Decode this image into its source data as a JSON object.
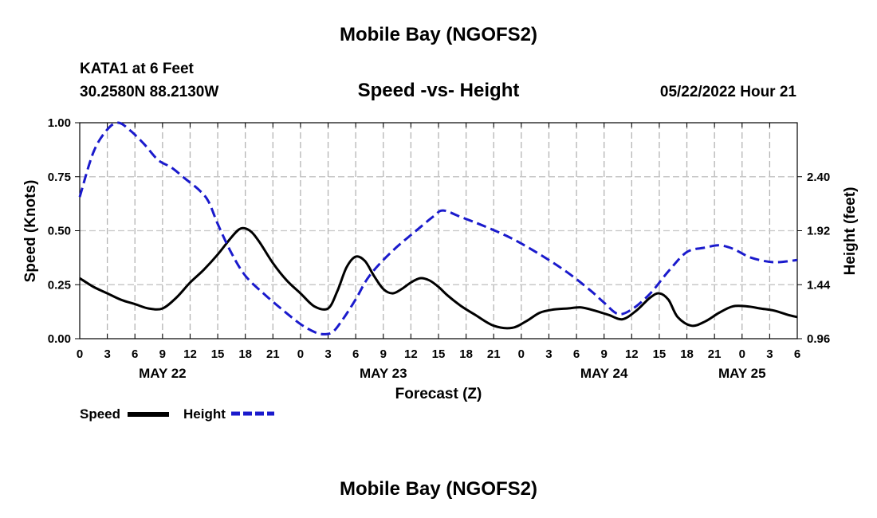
{
  "page": {
    "title_top": "Mobile Bay (NGOFS2)",
    "title_bottom": "Mobile Bay (NGOFS2)",
    "station_line1": "KATA1 at 6 Feet",
    "station_line2": "30.2580N  88.2130W",
    "subtitle": "Speed -vs- Height",
    "datetime": "05/22/2022 Hour 21"
  },
  "chart_data": {
    "type": "line",
    "title": "Speed -vs- Height",
    "xlabel": "Forecast (Z)",
    "ylabel": "Speed (Knots)",
    "y2label": "Height (feet)",
    "xlim": [
      0,
      78
    ],
    "ylim": [
      0,
      1.0
    ],
    "y2lim": [
      0.96,
      2.88
    ],
    "x_ticks": [
      0,
      3,
      6,
      9,
      12,
      15,
      18,
      21,
      24,
      27,
      30,
      33,
      36,
      39,
      42,
      45,
      48,
      51,
      54,
      57,
      60,
      63,
      66,
      69,
      72,
      75,
      78
    ],
    "x_tick_labels": [
      "0",
      "3",
      "6",
      "9",
      "12",
      "15",
      "18",
      "21",
      "0",
      "3",
      "6",
      "9",
      "12",
      "15",
      "18",
      "21",
      "0",
      "3",
      "6",
      "9",
      "12",
      "15",
      "18",
      "21",
      "0",
      "3",
      "6"
    ],
    "y_ticks": [
      0,
      0.25,
      0.5,
      0.75,
      1.0
    ],
    "y_tick_labels": [
      "0.00",
      "0.25",
      "0.50",
      "0.75",
      "1.00"
    ],
    "y2_ticks": [
      0.96,
      1.44,
      1.92,
      2.4
    ],
    "y2_tick_labels": [
      "0.96",
      "1.44",
      "1.92",
      "2.40"
    ],
    "date_labels": [
      {
        "x": 9,
        "label": "MAY 22"
      },
      {
        "x": 33,
        "label": "MAY 23"
      },
      {
        "x": 57,
        "label": "MAY 24"
      },
      {
        "x": 72,
        "label": "MAY 25"
      }
    ],
    "grid": true,
    "legend": "bottom-left",
    "series": [
      {
        "name": "Speed",
        "axis": "left",
        "color": "#000000",
        "style": "solid",
        "x": [
          0,
          1.5,
          3,
          4.5,
          6,
          7.5,
          9,
          10.5,
          12,
          13.5,
          15,
          16.5,
          17.5,
          18.5,
          19.5,
          21,
          22.5,
          24,
          25.5,
          27,
          28,
          29,
          30,
          31,
          32,
          33,
          34,
          35,
          36,
          37,
          38,
          39,
          40,
          41.5,
          43,
          45,
          47,
          48.5,
          50,
          51.5,
          53,
          54.5,
          56,
          57.5,
          59,
          60.5,
          62,
          63,
          64,
          65,
          66.5,
          68,
          69.5,
          71,
          72.5,
          74,
          75.5,
          77,
          78
        ],
        "values": [
          0.28,
          0.24,
          0.21,
          0.18,
          0.16,
          0.14,
          0.14,
          0.19,
          0.26,
          0.32,
          0.39,
          0.47,
          0.51,
          0.5,
          0.45,
          0.35,
          0.27,
          0.21,
          0.15,
          0.14,
          0.22,
          0.33,
          0.38,
          0.36,
          0.29,
          0.23,
          0.21,
          0.23,
          0.26,
          0.28,
          0.27,
          0.24,
          0.2,
          0.15,
          0.11,
          0.06,
          0.05,
          0.08,
          0.12,
          0.135,
          0.14,
          0.145,
          0.13,
          0.11,
          0.09,
          0.13,
          0.19,
          0.21,
          0.18,
          0.1,
          0.06,
          0.08,
          0.12,
          0.15,
          0.15,
          0.14,
          0.13,
          0.11,
          0.1
        ]
      },
      {
        "name": "Height",
        "axis": "right",
        "color": "#1a1acc",
        "style": "dashed",
        "x": [
          0,
          1.5,
          3,
          4.2,
          5.5,
          7,
          8.5,
          10,
          11.5,
          13,
          14,
          15,
          16.5,
          18,
          20,
          22,
          24,
          25.5,
          26.5,
          27.5,
          28.5,
          30,
          31.5,
          34,
          37,
          38.5,
          39.5,
          41.5,
          44,
          47,
          50,
          53,
          55.5,
          57,
          58.5,
          60,
          62,
          64,
          66,
          68,
          69.5,
          71,
          73,
          75.5,
          78
        ],
        "values": [
          2.22,
          2.62,
          2.82,
          2.88,
          2.81,
          2.69,
          2.55,
          2.48,
          2.38,
          2.28,
          2.18,
          1.98,
          1.72,
          1.52,
          1.36,
          1.22,
          1.09,
          1.02,
          1.0,
          1.02,
          1.12,
          1.31,
          1.52,
          1.74,
          1.95,
          2.05,
          2.1,
          2.04,
          1.96,
          1.85,
          1.71,
          1.55,
          1.39,
          1.28,
          1.18,
          1.22,
          1.36,
          1.56,
          1.73,
          1.77,
          1.79,
          1.76,
          1.68,
          1.64,
          1.66
        ]
      }
    ]
  }
}
